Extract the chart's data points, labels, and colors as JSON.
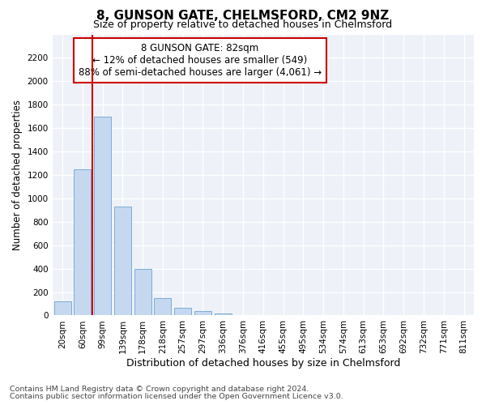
{
  "title": "8, GUNSON GATE, CHELMSFORD, CM2 9NZ",
  "subtitle": "Size of property relative to detached houses in Chelmsford",
  "xlabel": "Distribution of detached houses by size in Chelmsford",
  "ylabel": "Number of detached properties",
  "categories": [
    "20sqm",
    "60sqm",
    "99sqm",
    "139sqm",
    "178sqm",
    "218sqm",
    "257sqm",
    "297sqm",
    "336sqm",
    "376sqm",
    "416sqm",
    "455sqm",
    "495sqm",
    "534sqm",
    "574sqm",
    "613sqm",
    "653sqm",
    "692sqm",
    "732sqm",
    "771sqm",
    "811sqm"
  ],
  "values": [
    120,
    1250,
    1700,
    930,
    400,
    150,
    65,
    35,
    20,
    0,
    0,
    0,
    0,
    0,
    0,
    0,
    0,
    0,
    0,
    0,
    0
  ],
  "bar_color": "#c5d8f0",
  "bar_edge_color": "#7aadd4",
  "vline_x_index": 1.5,
  "vline_color": "#cc0000",
  "annotation_text": "8 GUNSON GATE: 82sqm\n← 12% of detached houses are smaller (549)\n88% of semi-detached houses are larger (4,061) →",
  "annotation_box_color": "#ffffff",
  "annotation_box_edge_color": "#cc0000",
  "ylim": [
    0,
    2400
  ],
  "yticks": [
    0,
    200,
    400,
    600,
    800,
    1000,
    1200,
    1400,
    1600,
    1800,
    2000,
    2200
  ],
  "footnote1": "Contains HM Land Registry data © Crown copyright and database right 2024.",
  "footnote2": "Contains public sector information licensed under the Open Government Licence v3.0.",
  "background_color": "#ffffff",
  "axes_background_color": "#eef2f8",
  "grid_color": "#ffffff",
  "title_fontsize": 11,
  "subtitle_fontsize": 9,
  "xlabel_fontsize": 9,
  "ylabel_fontsize": 8.5,
  "tick_fontsize": 7.5,
  "annotation_fontsize": 8.5,
  "footnote_fontsize": 6.8
}
